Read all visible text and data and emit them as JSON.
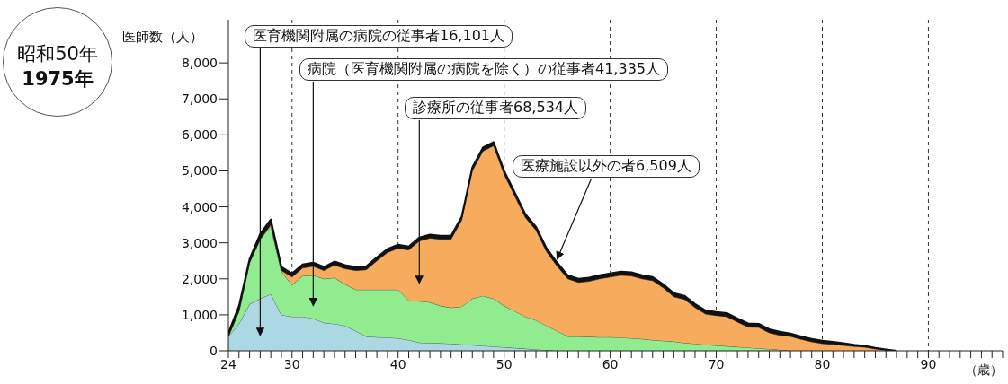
{
  "chart_data": {
    "type": "area",
    "title": "昭和50年",
    "subtitle": "1975年",
    "ylabel": "医師数（人）",
    "xlabel": "（歳）",
    "stacked": true,
    "grid": "x",
    "x": [
      24,
      25,
      26,
      27,
      28,
      29,
      30,
      31,
      32,
      33,
      34,
      35,
      36,
      37,
      38,
      39,
      40,
      41,
      42,
      43,
      44,
      45,
      46,
      47,
      48,
      49,
      50,
      51,
      52,
      53,
      54,
      55,
      56,
      57,
      58,
      59,
      60,
      61,
      62,
      63,
      64,
      65,
      66,
      67,
      68,
      69,
      70,
      71,
      72,
      73,
      74,
      75,
      76,
      77,
      78,
      79,
      80,
      81,
      82,
      83,
      84,
      85,
      86,
      87
    ],
    "xlim": [
      24,
      97
    ],
    "xticks": [
      24,
      {
        "value": 25,
        "label": null
      },
      {
        "value": 26,
        "label": null
      },
      {
        "value": 27,
        "label": null
      },
      {
        "value": 28,
        "label": null
      },
      {
        "value": 29,
        "label": null
      },
      30,
      {
        "value": 31,
        "label": null
      },
      {
        "value": 32,
        "label": null
      },
      {
        "value": 33,
        "label": null
      },
      {
        "value": 34,
        "label": null
      },
      {
        "value": 35,
        "label": null
      },
      {
        "value": 36,
        "label": null
      },
      {
        "value": 37,
        "label": null
      },
      {
        "value": 38,
        "label": null
      },
      {
        "value": 39,
        "label": null
      },
      40,
      {
        "value": 41,
        "label": null
      },
      {
        "value": 42,
        "label": null
      },
      {
        "value": 43,
        "label": null
      },
      {
        "value": 44,
        "label": null
      },
      {
        "value": 45,
        "label": null
      },
      {
        "value": 46,
        "label": null
      },
      {
        "value": 47,
        "label": null
      },
      {
        "value": 48,
        "label": null
      },
      {
        "value": 49,
        "label": null
      },
      50,
      {
        "value": 51,
        "label": null
      },
      {
        "value": 52,
        "label": null
      },
      {
        "value": 53,
        "label": null
      },
      {
        "value": 54,
        "label": null
      },
      {
        "value": 55,
        "label": null
      },
      {
        "value": 56,
        "label": null
      },
      {
        "value": 57,
        "label": null
      },
      {
        "value": 58,
        "label": null
      },
      {
        "value": 59,
        "label": null
      },
      60,
      {
        "value": 61,
        "label": null
      },
      {
        "value": 62,
        "label": null
      },
      {
        "value": 63,
        "label": null
      },
      {
        "value": 64,
        "label": null
      },
      {
        "value": 65,
        "label": null
      },
      {
        "value": 66,
        "label": null
      },
      {
        "value": 67,
        "label": null
      },
      {
        "value": 68,
        "label": null
      },
      {
        "value": 69,
        "label": null
      },
      70,
      {
        "value": 71,
        "label": null
      },
      {
        "value": 72,
        "label": null
      },
      {
        "value": 73,
        "label": null
      },
      {
        "value": 74,
        "label": null
      },
      {
        "value": 75,
        "label": null
      },
      {
        "value": 76,
        "label": null
      },
      {
        "value": 77,
        "label": null
      },
      {
        "value": 78,
        "label": null
      },
      {
        "value": 79,
        "label": null
      },
      80,
      {
        "value": 81,
        "label": null
      },
      {
        "value": 82,
        "label": null
      },
      {
        "value": 83,
        "label": null
      },
      {
        "value": 84,
        "label": null
      },
      {
        "value": 85,
        "label": null
      },
      {
        "value": 86,
        "label": null
      },
      {
        "value": 87,
        "label": null
      },
      {
        "value": 88,
        "label": null
      },
      {
        "value": 89,
        "label": null
      },
      90,
      {
        "value": 91,
        "label": null
      },
      {
        "value": 92,
        "label": null
      },
      {
        "value": 93,
        "label": null
      },
      {
        "value": 94,
        "label": null
      },
      {
        "value": 95,
        "label": null
      },
      {
        "value": 96,
        "label": null
      },
      {
        "value": 97,
        "label": null
      }
    ],
    "ylim": [
      0,
      9200
    ],
    "yticks": [
      0,
      {
        "value": 1000,
        "label": "1,000"
      },
      {
        "value": 2000,
        "label": "2,000"
      },
      {
        "value": 3000,
        "label": "3,000"
      },
      {
        "value": 4000,
        "label": "4,000"
      },
      {
        "value": 5000,
        "label": "5,000"
      },
      {
        "value": 6000,
        "label": "6,000"
      },
      {
        "value": 7000,
        "label": "7,000"
      },
      {
        "value": 8000,
        "label": "8,000"
      }
    ],
    "series": [
      {
        "name": "医育機関附属の病院の従事者16,101人",
        "color": "#acd8e4",
        "values": [
          400,
          750,
          1300,
          1450,
          1580,
          1000,
          950,
          950,
          900,
          780,
          750,
          700,
          550,
          400,
          380,
          370,
          350,
          300,
          230,
          220,
          210,
          200,
          180,
          160,
          140,
          120,
          100,
          80,
          60,
          40,
          20,
          0,
          0,
          0,
          0,
          0,
          0,
          0,
          0,
          0,
          0,
          0,
          0,
          0,
          0,
          0,
          0,
          0,
          0,
          0,
          0,
          0,
          0,
          0,
          0,
          0,
          0,
          0,
          0,
          0,
          0,
          0,
          0,
          0
        ]
      },
      {
        "name": "病院（医育機関附属の病院を除く）の従事者41,335人",
        "color": "#90ec8e",
        "values": [
          0,
          350,
          1150,
          1650,
          1870,
          1200,
          880,
          1130,
          1200,
          1220,
          1280,
          1150,
          1150,
          1300,
          1320,
          1330,
          1350,
          1100,
          1150,
          1130,
          1040,
          1000,
          1050,
          1290,
          1390,
          1330,
          1150,
          1020,
          890,
          810,
          680,
          550,
          400,
          400,
          390,
          380,
          380,
          370,
          350,
          330,
          300,
          280,
          260,
          220,
          200,
          170,
          150,
          130,
          110,
          90,
          70,
          50,
          30,
          0,
          0,
          0,
          0,
          0,
          0,
          0,
          0,
          0,
          0,
          0
        ]
      },
      {
        "name": "診療所の従事者68,534人",
        "color": "#f6ac5c",
        "values": [
          0,
          0,
          0,
          0,
          50,
          30,
          220,
          220,
          250,
          230,
          350,
          430,
          530,
          550,
          800,
          1030,
          1150,
          1400,
          1670,
          1780,
          1850,
          1900,
          2400,
          3550,
          4020,
          4250,
          3650,
          3200,
          2750,
          2500,
          2050,
          1800,
          1600,
          1500,
          1540,
          1620,
          1670,
          1730,
          1730,
          1670,
          1650,
          1470,
          1240,
          1210,
          1000,
          850,
          830,
          820,
          690,
          570,
          580,
          450,
          400,
          400,
          320,
          250,
          200,
          180,
          150,
          120,
          100,
          50,
          20,
          0
        ]
      },
      {
        "name": "医療施設以外の者6,509人",
        "color": "#111111",
        "values": [
          100,
          150,
          100,
          150,
          150,
          100,
          100,
          100,
          100,
          100,
          100,
          100,
          100,
          100,
          100,
          100,
          100,
          100,
          100,
          100,
          100,
          100,
          100,
          100,
          100,
          100,
          100,
          100,
          100,
          100,
          100,
          100,
          100,
          100,
          100,
          100,
          100,
          100,
          100,
          100,
          100,
          100,
          100,
          100,
          100,
          100,
          100,
          100,
          100,
          100,
          100,
          100,
          100,
          80,
          80,
          80,
          80,
          70,
          60,
          50,
          40,
          30,
          20,
          0
        ]
      }
    ]
  }
}
